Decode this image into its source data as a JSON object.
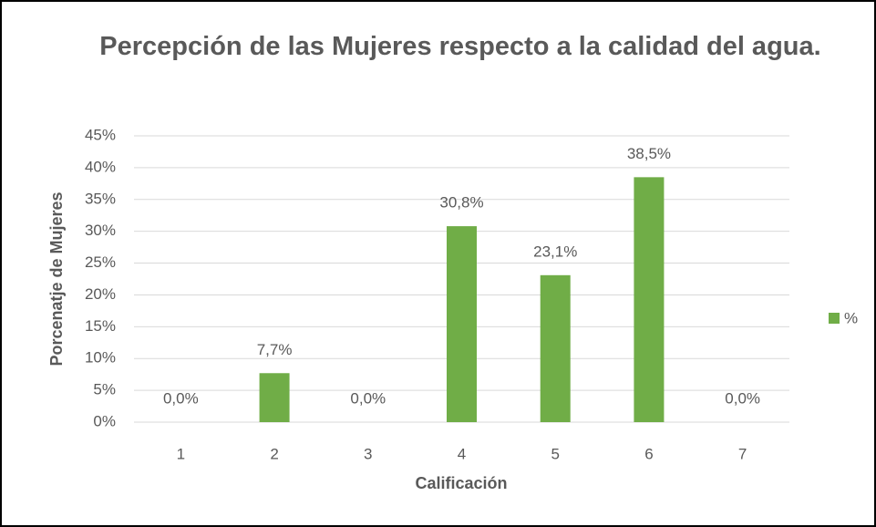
{
  "chart_data": {
    "type": "bar",
    "title": "Percepción de las Mujeres respecto a la calidad del agua.",
    "x_label": "Calificación",
    "y_label": "Porcenatje  de Mujeres",
    "categories": [
      "1",
      "2",
      "3",
      "4",
      "5",
      "6",
      "7"
    ],
    "series": [
      {
        "name": "%",
        "color": "#70ad47",
        "values": [
          0,
          7.7,
          0,
          30.8,
          23.1,
          38.5,
          0
        ],
        "value_labels": [
          "0,0%",
          "7,7%",
          "0,0%",
          "30,8%",
          "23,1%",
          "38,5%",
          "0,0%"
        ]
      }
    ],
    "ylim": [
      0,
      45
    ],
    "yticks": [
      {
        "value": 0,
        "label": "0%"
      },
      {
        "value": 5,
        "label": "5%"
      },
      {
        "value": 10,
        "label": "10%"
      },
      {
        "value": 15,
        "label": "15%"
      },
      {
        "value": 20,
        "label": "20%"
      },
      {
        "value": 25,
        "label": "25%"
      },
      {
        "value": 30,
        "label": "30%"
      },
      {
        "value": 35,
        "label": "35%"
      },
      {
        "value": 40,
        "label": "40%"
      },
      {
        "value": 45,
        "label": "45%"
      }
    ],
    "grid": true,
    "legend": "right"
  }
}
